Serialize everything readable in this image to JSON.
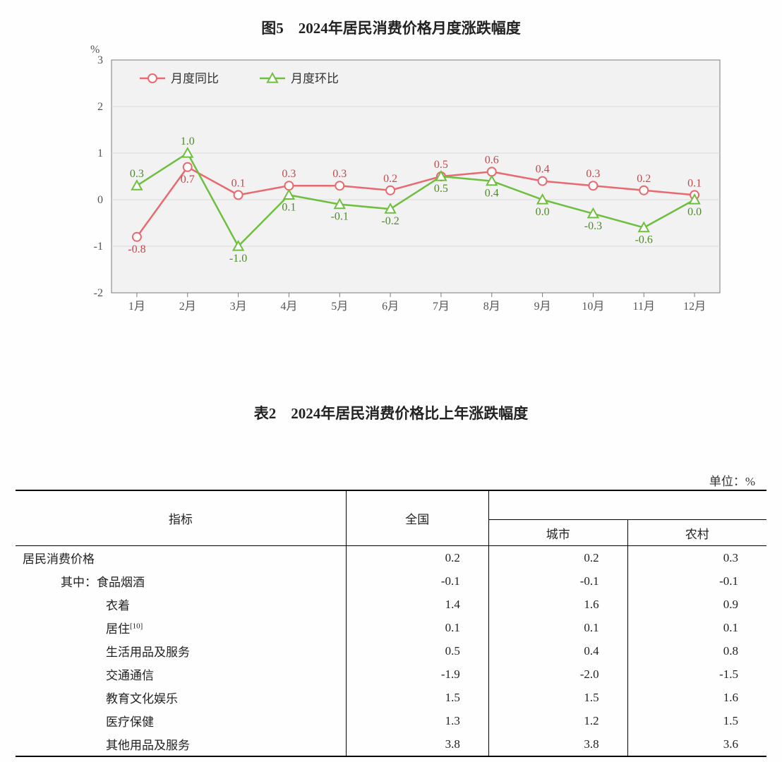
{
  "chart": {
    "title": "图5　2024年居民消费价格月度涨跌幅度",
    "title_fontsize": 21,
    "y_unit_label": "%",
    "plot_background": "#f2f2f2",
    "plot_border": "#7a7a7a",
    "grid_color": "#d9d9d9",
    "axis_text_color": "#555555",
    "font_family": "SimSun",
    "tick_fontsize": 16,
    "value_label_fontsize": 16,
    "legend_fontsize": 17,
    "ylim": [
      -2,
      3
    ],
    "ytick_step": 1,
    "categories": [
      "1月",
      "2月",
      "3月",
      "4月",
      "5月",
      "6月",
      "7月",
      "8月",
      "9月",
      "10月",
      "11月",
      "12月"
    ],
    "series": [
      {
        "name": "月度同比",
        "color": "#e86a6f",
        "marker": "circle",
        "marker_fill": "#ffffff",
        "marker_size": 6,
        "line_width": 2.5,
        "values": [
          -0.8,
          0.7,
          0.1,
          0.3,
          0.3,
          0.2,
          0.5,
          0.6,
          0.4,
          0.3,
          0.2,
          0.1
        ],
        "label_color": "#bf4a4e",
        "label_pos": [
          "below",
          "below",
          "above",
          "above",
          "above",
          "above",
          "above",
          "above",
          "above",
          "above",
          "above",
          "above"
        ]
      },
      {
        "name": "月度环比",
        "color": "#6fbf3f",
        "marker": "triangle",
        "marker_fill": "#ffffff",
        "marker_size": 7,
        "line_width": 2.5,
        "values": [
          0.3,
          1.0,
          -1.0,
          0.1,
          -0.1,
          -0.2,
          0.5,
          0.4,
          0.0,
          -0.3,
          -0.6,
          0.0
        ],
        "label_color": "#4f8a2a",
        "label_pos": [
          "above",
          "above",
          "below",
          "below",
          "below",
          "below",
          "below",
          "below",
          "below",
          "below",
          "below",
          "below"
        ]
      }
    ],
    "legend_position": "top-left-inside"
  },
  "table": {
    "title": "表2　2024年居民消费价格比上年涨跌幅度",
    "unit": "单位：%",
    "columns": [
      "指标",
      "全国",
      "城市",
      "农村"
    ],
    "col_widths_pct": [
      44,
      19,
      18.5,
      18.5
    ],
    "rows": [
      {
        "label": "居民消费价格",
        "indent": 0,
        "vals": [
          "0.2",
          "0.2",
          "0.3"
        ]
      },
      {
        "label": "其中：食品烟酒",
        "indent": 1,
        "vals": [
          "-0.1",
          "-0.1",
          "-0.1"
        ]
      },
      {
        "label": "衣着",
        "indent": 2,
        "vals": [
          "1.4",
          "1.6",
          "0.9"
        ]
      },
      {
        "label": "居住",
        "sup": "[10]",
        "indent": 2,
        "vals": [
          "0.1",
          "0.1",
          "0.1"
        ]
      },
      {
        "label": "生活用品及服务",
        "indent": 2,
        "vals": [
          "0.5",
          "0.4",
          "0.8"
        ]
      },
      {
        "label": "交通通信",
        "indent": 2,
        "vals": [
          "-1.9",
          "-2.0",
          "-1.5"
        ]
      },
      {
        "label": "教育文化娱乐",
        "indent": 2,
        "vals": [
          "1.5",
          "1.5",
          "1.6"
        ]
      },
      {
        "label": "医疗保健",
        "indent": 2,
        "vals": [
          "1.3",
          "1.2",
          "1.5"
        ]
      },
      {
        "label": "其他用品及服务",
        "indent": 2,
        "vals": [
          "3.8",
          "3.8",
          "3.6"
        ]
      }
    ],
    "border_color": "#000000",
    "font_size": 17
  }
}
